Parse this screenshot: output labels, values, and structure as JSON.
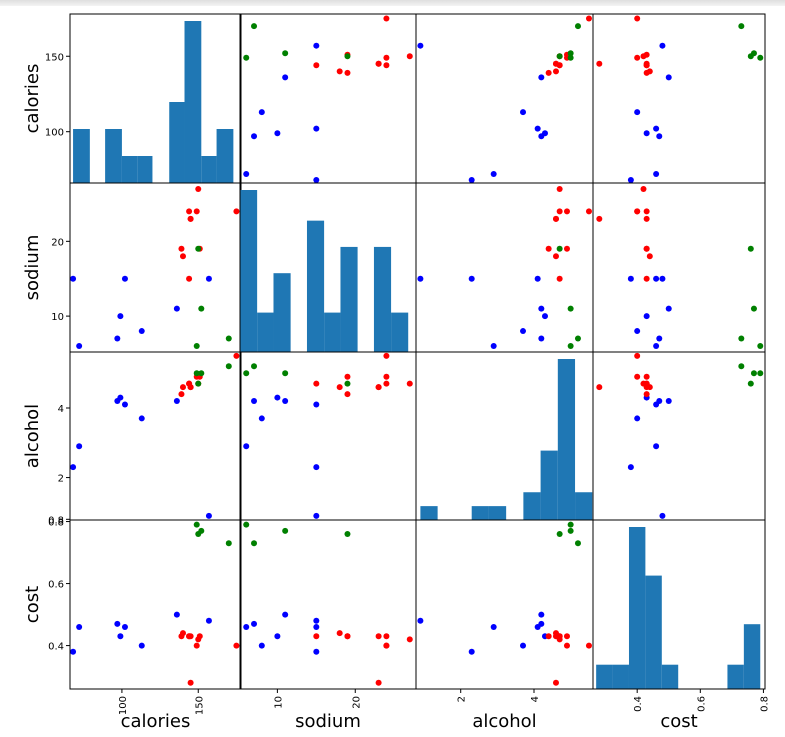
{
  "chart_data": {
    "type": "scatter",
    "title": "",
    "variables": [
      "calories",
      "sodium",
      "alcohol",
      "cost"
    ],
    "labels": {
      "calories": "calories",
      "sodium": "sodium",
      "alcohol": "alcohol",
      "cost": "cost"
    },
    "ranges": {
      "calories": [
        66,
        178
      ],
      "sodium": [
        5.2,
        27.8
      ],
      "alcohol": [
        0.78,
        5.61
      ],
      "cost": [
        0.26,
        0.805
      ]
    },
    "ticks": {
      "calories": [
        100,
        150
      ],
      "sodium": [
        10,
        20
      ],
      "alcohol": [
        2,
        4
      ],
      "cost": [
        0.4,
        0.6,
        0.8
      ]
    },
    "row_ticks": {
      "calories": [
        {
          "v": 100,
          "t": "100"
        },
        {
          "v": 150,
          "t": "150"
        }
      ],
      "sodium": [
        {
          "v": 10,
          "t": "10"
        },
        {
          "v": 20,
          "t": "20"
        }
      ],
      "alcohol": [
        {
          "v": 2,
          "t": "2"
        },
        {
          "v": 4,
          "t": "4"
        },
        {
          "v": 0.8,
          "t": "0.8"
        }
      ],
      "cost": [
        {
          "v": 0.4,
          "t": "0.4"
        },
        {
          "v": 0.6,
          "t": "0.6"
        },
        {
          "v": 0.8,
          "t": "0.8"
        }
      ]
    },
    "col_ticks": {
      "calories": [
        {
          "v": 100,
          "t": "100"
        },
        {
          "v": 150,
          "t": "150"
        }
      ],
      "sodium": [
        {
          "v": 10,
          "t": "10"
        },
        {
          "v": 20,
          "t": "20"
        }
      ],
      "alcohol": [
        {
          "v": 2,
          "t": "2"
        },
        {
          "v": 4,
          "t": "4"
        }
      ],
      "cost": [
        {
          "v": 0.4,
          "t": "0.4"
        },
        {
          "v": 0.6,
          "t": "0.6"
        },
        {
          "v": 0.8,
          "t": "0.8"
        }
      ]
    },
    "histograms": {
      "calories": {
        "edges": [
          68,
          79,
          89,
          100,
          110,
          120,
          131,
          141,
          152,
          162,
          173
        ],
        "counts": [
          1,
          0,
          1,
          0.5,
          0.5,
          0,
          1.5,
          3,
          0.5,
          1
        ]
      },
      "sodium": {
        "edges": [
          5.2,
          7.4,
          9.5,
          11.7,
          13.8,
          16,
          18.1,
          20.3,
          22.4,
          24.6,
          26.8
        ],
        "counts": [
          3.7,
          0.9,
          1.8,
          0,
          3,
          0.9,
          2.4,
          0,
          2.4,
          0.9
        ]
      },
      "alcohol": {
        "edges": [
          0.9,
          1.37,
          1.84,
          2.3,
          2.77,
          3.24,
          3.71,
          4.18,
          4.65,
          5.12,
          5.59
        ],
        "counts": [
          0.5,
          0,
          0,
          0.5,
          0.5,
          0,
          1,
          2.5,
          5.8,
          1
        ]
      },
      "cost": {
        "edges": [
          0.27,
          0.322,
          0.374,
          0.426,
          0.478,
          0.53,
          0.582,
          0.634,
          0.686,
          0.738,
          0.79
        ],
        "counts": [
          0.6,
          0.6,
          4,
          2.8,
          0.6,
          0,
          0,
          0,
          0.6,
          1.6
        ]
      }
    },
    "colors": {
      "blue": "#0000ff",
      "red": "#ff0000",
      "green": "#008000",
      "hist": "#1f77b4"
    },
    "points": [
      {
        "calories": 157,
        "sodium": 15,
        "alcohol": 0.9,
        "cost": 0.48,
        "color": "blue"
      },
      {
        "calories": 136,
        "sodium": 11,
        "alcohol": 4.2,
        "cost": 0.5,
        "color": "blue"
      },
      {
        "calories": 113,
        "sodium": 8,
        "alcohol": 3.7,
        "cost": 0.4,
        "color": "blue"
      },
      {
        "calories": 102,
        "sodium": 15,
        "alcohol": 4.1,
        "cost": 0.46,
        "color": "blue"
      },
      {
        "calories": 99,
        "sodium": 10,
        "alcohol": 4.3,
        "cost": 0.43,
        "color": "blue"
      },
      {
        "calories": 97,
        "sodium": 7,
        "alcohol": 4.2,
        "cost": 0.47,
        "color": "blue"
      },
      {
        "calories": 72,
        "sodium": 6,
        "alcohol": 2.9,
        "cost": 0.46,
        "color": "blue"
      },
      {
        "calories": 68,
        "sodium": 15,
        "alcohol": 2.3,
        "cost": 0.38,
        "color": "blue"
      },
      {
        "calories": 144,
        "sodium": 24,
        "alcohol": 4.7,
        "cost": 0.43,
        "color": "red"
      },
      {
        "calories": 145,
        "sodium": 23,
        "alcohol": 4.6,
        "cost": 0.43,
        "color": "red"
      },
      {
        "calories": 140,
        "sodium": 18,
        "alcohol": 4.6,
        "cost": 0.44,
        "color": "red"
      },
      {
        "calories": 139,
        "sodium": 19,
        "alcohol": 4.4,
        "cost": 0.43,
        "color": "red"
      },
      {
        "calories": 144,
        "sodium": 15,
        "alcohol": 4.7,
        "cost": 0.43,
        "color": "red"
      },
      {
        "calories": 151,
        "sodium": 19,
        "alcohol": 4.9,
        "cost": 0.43,
        "color": "red"
      },
      {
        "calories": 150,
        "sodium": 27,
        "alcohol": 4.7,
        "cost": 0.42,
        "color": "red"
      },
      {
        "calories": 149,
        "sodium": 24,
        "alcohol": 4.9,
        "cost": 0.4,
        "color": "red"
      },
      {
        "calories": 175,
        "sodium": 24,
        "alcohol": 5.5,
        "cost": 0.4,
        "color": "red"
      },
      {
        "calories": 145,
        "sodium": 23,
        "alcohol": 4.6,
        "cost": 0.28,
        "color": "red"
      },
      {
        "calories": 170,
        "sodium": 7,
        "alcohol": 5.2,
        "cost": 0.73,
        "color": "green"
      },
      {
        "calories": 152,
        "sodium": 11,
        "alcohol": 5.0,
        "cost": 0.77,
        "color": "green"
      },
      {
        "calories": 150,
        "sodium": 19,
        "alcohol": 4.7,
        "cost": 0.76,
        "color": "green"
      },
      {
        "calories": 149,
        "sodium": 6,
        "alcohol": 5.0,
        "cost": 0.79,
        "color": "green"
      }
    ]
  }
}
